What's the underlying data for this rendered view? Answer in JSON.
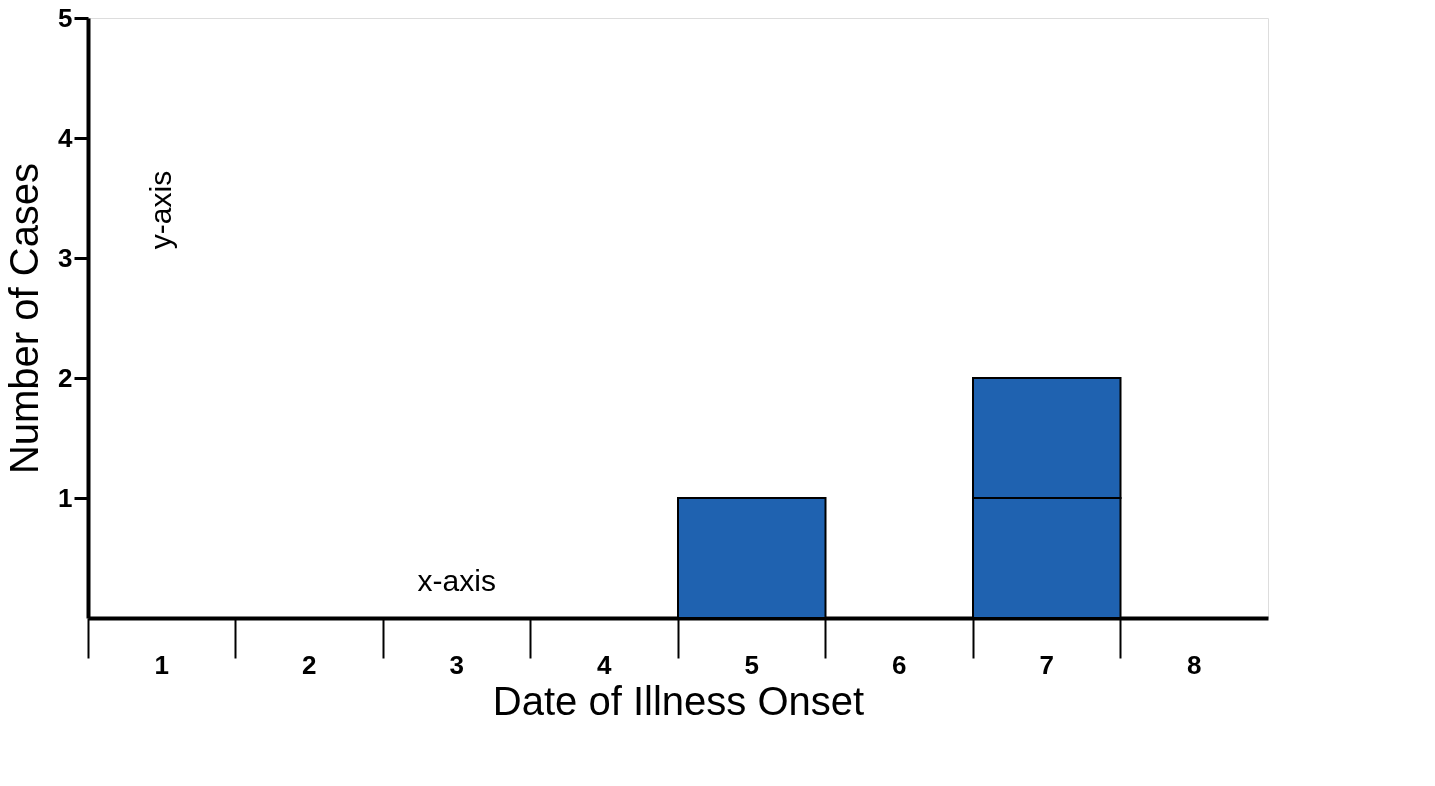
{
  "chart_data": {
    "type": "bar",
    "stacked": true,
    "xlabel": "Date of Illness Onset",
    "ylabel": "Number of Cases",
    "categories": [
      "1",
      "2",
      "3",
      "4",
      "5",
      "6",
      "7",
      "8"
    ],
    "series": [
      {
        "color": "#1f62b0",
        "values": [
          null,
          null,
          null,
          null,
          1,
          null,
          1,
          null
        ]
      },
      {
        "color": "#1f62b0",
        "values": [
          null,
          null,
          null,
          null,
          null,
          null,
          1,
          null
        ]
      }
    ],
    "ylim": [
      0,
      5
    ],
    "yticks": [
      1,
      2,
      3,
      4,
      5
    ],
    "grid": false,
    "annotations": [
      "y-axis",
      "x-axis"
    ]
  }
}
